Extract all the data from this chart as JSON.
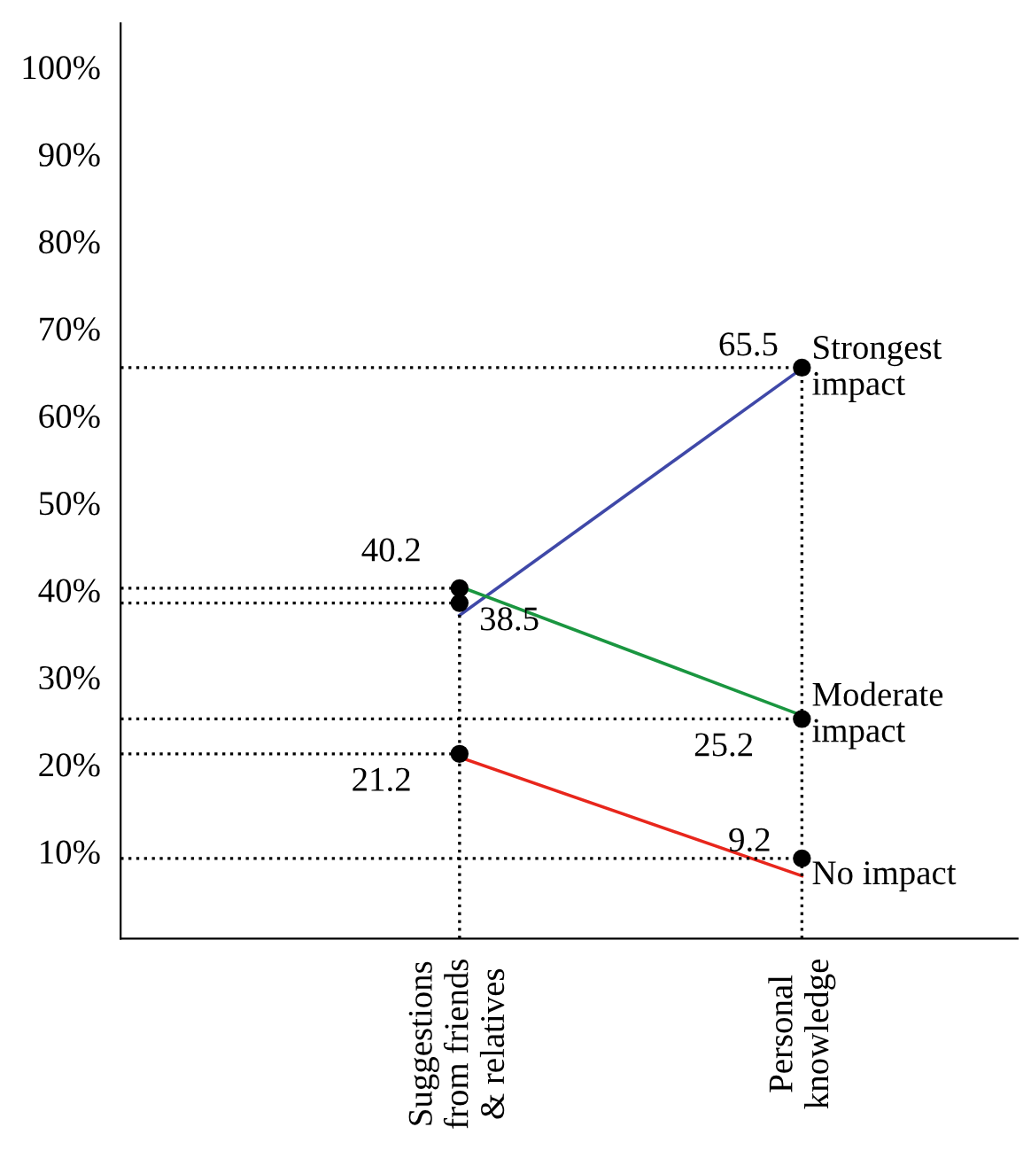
{
  "chart_data": {
    "type": "scatter",
    "categories": [
      "Suggestions\nfrom friends\n& relatives",
      "Personal\nknowledge"
    ],
    "ylim": [
      0,
      105
    ],
    "yticks": [
      {
        "value": 10,
        "label": "10%"
      },
      {
        "value": 20,
        "label": "20%"
      },
      {
        "value": 30,
        "label": "30%"
      },
      {
        "value": 40,
        "label": "40%"
      },
      {
        "value": 50,
        "label": "50%"
      },
      {
        "value": 60,
        "label": "60%"
      },
      {
        "value": 70,
        "label": "70%"
      },
      {
        "value": 80,
        "label": "80%"
      },
      {
        "value": 90,
        "label": "90%"
      },
      {
        "value": 100,
        "label": "100%"
      }
    ],
    "grid": false,
    "legend": false,
    "marker": "circle",
    "series": [
      {
        "type": "line",
        "name": "Strongest\nimpact",
        "color": "#3f48a8",
        "marker": "none",
        "values": [
          37.1,
          65.4
        ]
      },
      {
        "type": "line",
        "name": "Moderate\nimpact",
        "color": "#1a9640",
        "marker": "none",
        "values": [
          40.4,
          25.6
        ]
      },
      {
        "type": "line",
        "name": "No impact",
        "color": "#e8261c",
        "marker": "none",
        "values": [
          20.8,
          7.2
        ]
      },
      {
        "color": "#000000",
        "values": [
          38.5,
          65.5
        ],
        "value_labels": [
          "38.5",
          "65.5"
        ]
      },
      {
        "color": "#000000",
        "values": [
          40.2,
          25.2
        ],
        "value_labels": [
          "40.2",
          "25.2"
        ]
      },
      {
        "color": "#000000",
        "values": [
          21.2,
          9.2
        ],
        "value_labels": [
          "21.2",
          "9.2"
        ]
      }
    ],
    "ref_lines": [
      {
        "axis": "y",
        "value": 65.5,
        "line_style": "dotted",
        "color": "#000000"
      },
      {
        "axis": "y",
        "value": 40.2,
        "line_style": "dotted",
        "color": "#000000"
      },
      {
        "axis": "y",
        "value": 38.5,
        "line_style": "dotted",
        "color": "#000000"
      },
      {
        "axis": "y",
        "value": 25.2,
        "line_style": "dotted",
        "color": "#000000"
      },
      {
        "axis": "y",
        "value": 21.2,
        "line_style": "dotted",
        "color": "#000000"
      },
      {
        "axis": "y",
        "value": 9.2,
        "line_style": "dotted",
        "color": "#000000"
      }
    ]
  }
}
